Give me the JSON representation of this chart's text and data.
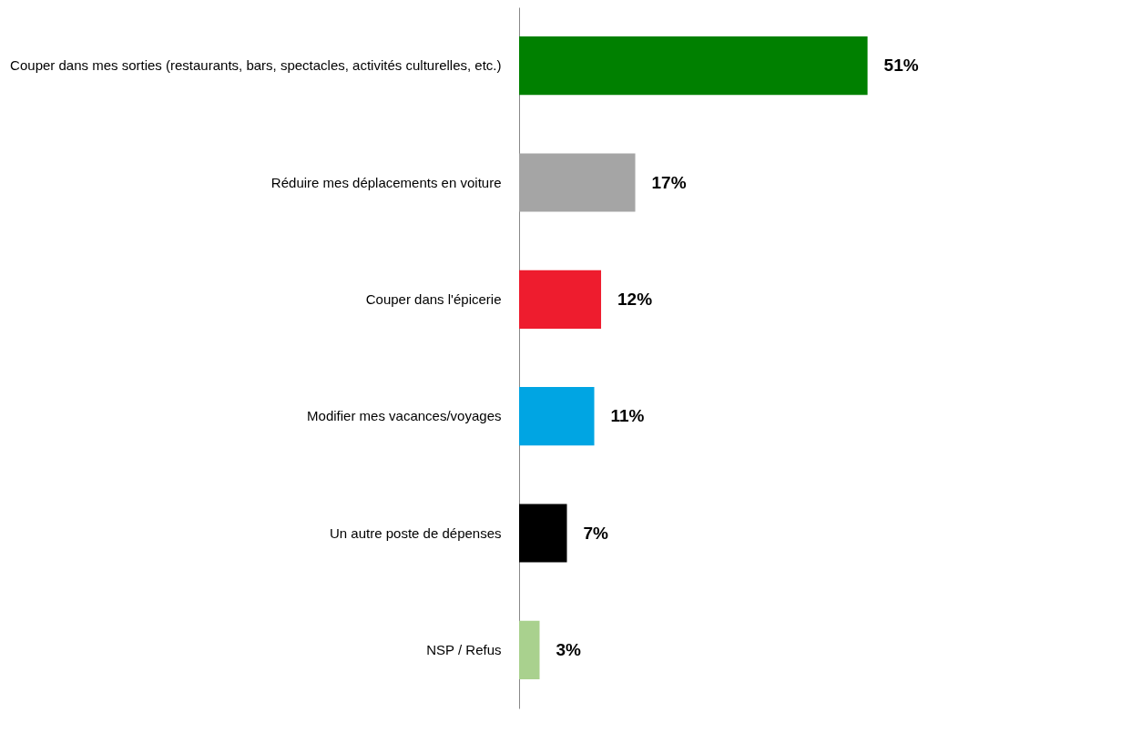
{
  "chart_data": {
    "type": "bar",
    "orientation": "horizontal",
    "categories": [
      "Couper dans mes sorties (restaurants, bars, spectacles, activités culturelles, etc.)",
      "Réduire mes déplacements en voiture",
      "Couper dans l'épicerie",
      "Modifier mes vacances/voyages",
      "Un autre poste de dépenses",
      "NSP / Refus"
    ],
    "values": [
      51,
      17,
      12,
      11,
      7,
      3
    ],
    "colors": [
      "#008000",
      "#a5a5a5",
      "#ee1c2e",
      "#00a5e3",
      "#000000",
      "#a9d18e"
    ],
    "value_labels": [
      "51%",
      "17%",
      "12%",
      "11%",
      "7%",
      "3%"
    ],
    "legend": false
  }
}
